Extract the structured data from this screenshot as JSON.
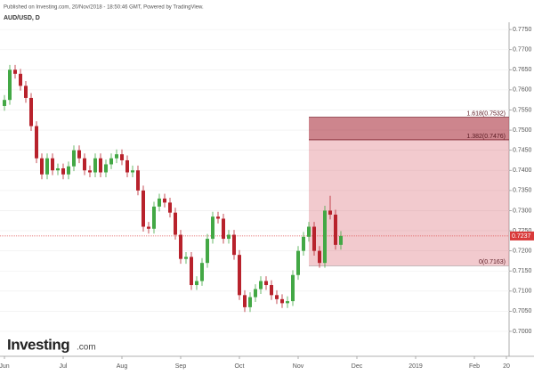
{
  "header": {
    "published": "Published on Investing.com, 20/Nov/2018 - 18:50:46 GMT, Powered by TradingView.",
    "symbol": "AUD/USD, D"
  },
  "logo": {
    "name": "Investing",
    "suffix": ".com"
  },
  "chart_data": {
    "type": "candlestick",
    "categories": [
      "Jun",
      null,
      null,
      null,
      null,
      null,
      null,
      null,
      null,
      null,
      null,
      "Jul",
      null,
      null,
      null,
      null,
      null,
      null,
      null,
      null,
      null,
      null,
      "Aug",
      null,
      null,
      null,
      null,
      null,
      null,
      null,
      null,
      null,
      null,
      "Sep",
      null,
      null,
      null,
      null,
      null,
      null,
      null,
      null,
      null,
      null,
      "Oct",
      null,
      null,
      null,
      null,
      null,
      null,
      null,
      null,
      null,
      null,
      "Nov",
      null,
      null,
      null,
      null,
      null,
      null,
      null,
      null,
      null,
      null,
      "Dec",
      null,
      null,
      null,
      null,
      null,
      null,
      null,
      null,
      null,
      null,
      "2019",
      null,
      null,
      null,
      null,
      null,
      null,
      null,
      null,
      null,
      null,
      "Feb",
      null,
      null,
      null,
      null,
      null,
      "20"
    ],
    "open": [
      0.756,
      0.7575,
      0.765,
      0.764,
      0.761,
      0.758,
      0.751,
      0.743,
      0.739,
      0.743,
      0.74,
      0.7405,
      0.739,
      0.741,
      0.745,
      0.743,
      0.74,
      0.7395,
      0.743,
      0.7395,
      0.7415,
      0.743,
      0.744,
      0.7425,
      0.7395,
      0.74,
      0.735,
      0.726,
      0.7255,
      0.731,
      0.733,
      0.732,
      0.7295,
      0.724,
      0.718,
      0.7185,
      0.7115,
      0.7125,
      0.717,
      0.723,
      0.7285,
      0.728,
      0.723,
      0.724,
      0.719,
      0.709,
      0.706,
      0.7085,
      0.7105,
      0.7125,
      0.7115,
      0.709,
      0.708,
      0.707,
      0.7075,
      0.714,
      0.72,
      0.7235,
      0.726,
      0.72,
      0.717,
      0.73,
      0.729,
      0.7215,
      null,
      null,
      null,
      null,
      null,
      null,
      null,
      null,
      null,
      null,
      null,
      null,
      null,
      null,
      null,
      null,
      null,
      null,
      null,
      null,
      null,
      null,
      null,
      null,
      null,
      null,
      null,
      null,
      null,
      null,
      null
    ],
    "high": [
      0.7587,
      0.7662,
      0.7662,
      0.7652,
      0.7622,
      0.7592,
      0.7522,
      0.7442,
      0.7442,
      0.7442,
      0.7417,
      0.7417,
      0.7422,
      0.7462,
      0.7462,
      0.7442,
      0.7412,
      0.7442,
      0.7442,
      0.7427,
      0.7442,
      0.7452,
      0.7452,
      0.7437,
      0.7412,
      0.7412,
      0.7362,
      0.7272,
      0.7322,
      0.7342,
      0.7342,
      0.7332,
      0.7307,
      0.7252,
      0.7197,
      0.7197,
      0.7137,
      0.7182,
      0.7242,
      0.7297,
      0.7297,
      0.7292,
      0.7252,
      0.7252,
      0.7202,
      0.7102,
      0.7097,
      0.7117,
      0.7137,
      0.7137,
      0.7127,
      0.7102,
      0.7092,
      0.7087,
      0.7152,
      0.7212,
      0.7247,
      0.7272,
      0.7272,
      0.7212,
      0.7312,
      0.7337,
      0.7302,
      0.7249,
      null,
      null,
      null,
      null,
      null,
      null,
      null,
      null,
      null,
      null,
      null,
      null,
      null,
      null,
      null,
      null,
      null,
      null,
      null,
      null,
      null,
      null,
      null,
      null,
      null,
      null,
      null,
      null,
      null,
      null,
      null
    ],
    "low": [
      0.7548,
      0.7563,
      0.7628,
      0.7598,
      0.7568,
      0.7498,
      0.7418,
      0.7378,
      0.7378,
      0.7388,
      0.7388,
      0.7378,
      0.7378,
      0.7398,
      0.7418,
      0.7388,
      0.7383,
      0.7383,
      0.7383,
      0.7383,
      0.7403,
      0.7418,
      0.7413,
      0.7383,
      0.7383,
      0.7338,
      0.7248,
      0.7243,
      0.7243,
      0.7298,
      0.7308,
      0.7283,
      0.7228,
      0.7168,
      0.7168,
      0.7103,
      0.7103,
      0.7113,
      0.7158,
      0.7218,
      0.7268,
      0.7218,
      0.7218,
      0.7178,
      0.7078,
      0.7048,
      0.7048,
      0.7073,
      0.7093,
      0.7103,
      0.7078,
      0.7068,
      0.7058,
      0.7058,
      0.7063,
      0.7128,
      0.7188,
      0.7223,
      0.7188,
      0.7158,
      0.7158,
      0.7278,
      0.7203,
      0.7203,
      null,
      null,
      null,
      null,
      null,
      null,
      null,
      null,
      null,
      null,
      null,
      null,
      null,
      null,
      null,
      null,
      null,
      null,
      null,
      null,
      null,
      null,
      null,
      null,
      null,
      null,
      null,
      null,
      null,
      null,
      null
    ],
    "close": [
      0.7575,
      0.765,
      0.764,
      0.761,
      0.758,
      0.751,
      0.743,
      0.739,
      0.743,
      0.74,
      0.7405,
      0.739,
      0.741,
      0.745,
      0.743,
      0.74,
      0.7395,
      0.743,
      0.7395,
      0.7415,
      0.743,
      0.744,
      0.7425,
      0.7395,
      0.74,
      0.735,
      0.726,
      0.7255,
      0.731,
      0.733,
      0.732,
      0.7295,
      0.724,
      0.718,
      0.7185,
      0.7115,
      0.7125,
      0.717,
      0.723,
      0.7285,
      0.728,
      0.723,
      0.724,
      0.719,
      0.709,
      0.706,
      0.7085,
      0.7105,
      0.7125,
      0.7115,
      0.709,
      0.708,
      0.707,
      0.7075,
      0.714,
      0.72,
      0.7235,
      0.726,
      0.72,
      0.717,
      0.73,
      0.729,
      0.7215,
      0.7237,
      null,
      null,
      null,
      null,
      null,
      null,
      null,
      null,
      null,
      null,
      null,
      null,
      null,
      null,
      null,
      null,
      null,
      null,
      null,
      null,
      null,
      null,
      null,
      null,
      null,
      null,
      null,
      null,
      null,
      null,
      null
    ],
    "up_color": "#43a845",
    "down_color": "#b8222c",
    "ylim": [
      0.6938,
      0.7768
    ],
    "yticks": [
      {
        "value": 0.7,
        "label": "0.7000"
      },
      {
        "value": 0.705,
        "label": "0.7050"
      },
      {
        "value": 0.71,
        "label": "0.7100"
      },
      {
        "value": 0.715,
        "label": "0.7150"
      },
      {
        "value": 0.72,
        "label": "0.7200"
      },
      {
        "value": 0.725,
        "label": "0.7250"
      },
      {
        "value": 0.73,
        "label": "0.7300"
      },
      {
        "value": 0.735,
        "label": "0.7350"
      },
      {
        "value": 0.74,
        "label": "0.7400"
      },
      {
        "value": 0.745,
        "label": "0.7450"
      },
      {
        "value": 0.75,
        "label": "0.7500"
      },
      {
        "value": 0.755,
        "label": "0.7550"
      },
      {
        "value": 0.76,
        "label": "0.7600"
      },
      {
        "value": 0.765,
        "label": "0.7650"
      },
      {
        "value": 0.77,
        "label": "0.7700"
      },
      {
        "value": 0.775,
        "label": "0.7750"
      }
    ],
    "grid": true,
    "last_price": {
      "value": 0.7237,
      "label": "0.7237"
    },
    "fib": {
      "levels": [
        {
          "value": 0.7532,
          "label": "1.618(0.7532)"
        },
        {
          "value": 0.7476,
          "label": "1.382(0.7476)"
        },
        {
          "value": 0.7163,
          "label": "0(0.7163)"
        }
      ]
    }
  }
}
